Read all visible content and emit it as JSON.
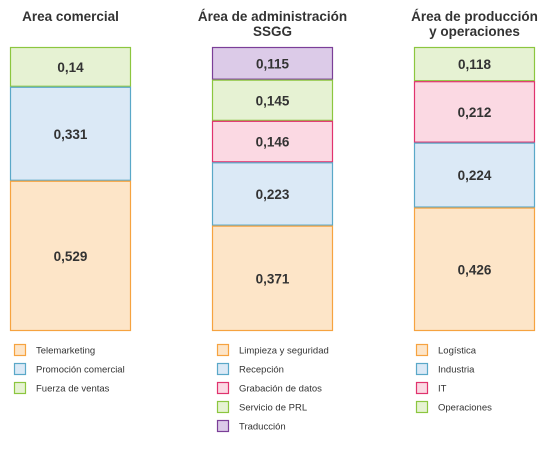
{
  "chart_data": [
    {
      "type": "bar",
      "stacked": true,
      "title": "Area comercial",
      "segments": [
        {
          "name": "Fuerza de ventas",
          "value": 0.14,
          "label": "0,14",
          "fill": "#e6f2d3",
          "stroke": "#8cc63f"
        },
        {
          "name": "Promoción comercial",
          "value": 0.331,
          "label": "0,331",
          "fill": "#dbe9f6",
          "stroke": "#5aa8c8"
        },
        {
          "name": "Telemarketing",
          "value": 0.529,
          "label": "0,529",
          "fill": "#fde5c8",
          "stroke": "#f6a340"
        }
      ],
      "legend": [
        "Telemarketing",
        "Promoción comercial",
        "Fuerza de ventas"
      ]
    },
    {
      "type": "bar",
      "stacked": true,
      "title": "Área de administración SSGG",
      "title_lines": [
        "Área de administración",
        "SSGG"
      ],
      "segments": [
        {
          "name": "Traducción",
          "value": 0.115,
          "label": "0,115",
          "fill": "#dccbe8",
          "stroke": "#7b3f98"
        },
        {
          "name": "Servicio de PRL",
          "value": 0.145,
          "label": "0,145",
          "fill": "#e6f2d3",
          "stroke": "#8cc63f"
        },
        {
          "name": "Grabación de datos",
          "value": 0.146,
          "label": "0,146",
          "fill": "#fbd9e3",
          "stroke": "#e0336e"
        },
        {
          "name": "Recepción",
          "value": 0.223,
          "label": "0,223",
          "fill": "#dbe9f6",
          "stroke": "#5aa8c8"
        },
        {
          "name": "Limpieza y seguridad",
          "value": 0.371,
          "label": "0,371",
          "fill": "#fde5c8",
          "stroke": "#f6a340"
        }
      ],
      "legend": [
        "Limpieza y seguridad",
        "Recepción",
        "Grabación de datos",
        "Servicio de PRL",
        "Traducción"
      ]
    },
    {
      "type": "bar",
      "stacked": true,
      "title": "Área de producción y operaciones",
      "title_lines": [
        "Área de producción",
        "y operaciones"
      ],
      "segments": [
        {
          "name": "Operaciones",
          "value": 0.118,
          "label": "0,118",
          "fill": "#e6f2d3",
          "stroke": "#8cc63f"
        },
        {
          "name": "IT",
          "value": 0.212,
          "label": "0,212",
          "fill": "#fbd9e3",
          "stroke": "#e0336e"
        },
        {
          "name": "Industria",
          "value": 0.224,
          "label": "0,224",
          "fill": "#dbe9f6",
          "stroke": "#5aa8c8"
        },
        {
          "name": "Logística",
          "value": 0.426,
          "label": "0,426",
          "fill": "#fde5c8",
          "stroke": "#f6a340"
        }
      ],
      "legend": [
        "Logística",
        "Industria",
        "IT",
        "Operaciones"
      ]
    }
  ]
}
